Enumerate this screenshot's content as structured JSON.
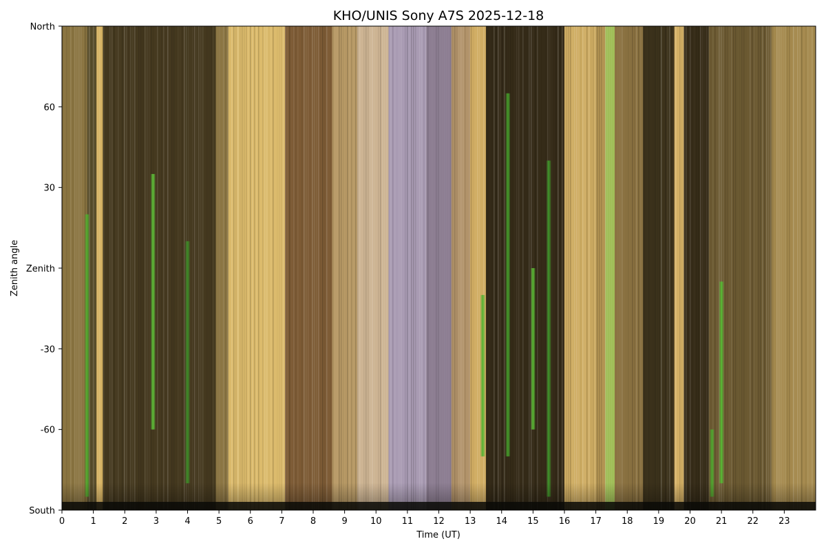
{
  "chart_data": {
    "type": "heatmap",
    "title": "KHO/UNIS Sony A7S 2025-12-18",
    "xlabel": "Time (UT)",
    "ylabel": "Zenith angle",
    "xlim": [
      0,
      24
    ],
    "ylim": [
      -90,
      90
    ],
    "x_ticks": [
      0,
      1,
      2,
      3,
      4,
      5,
      6,
      7,
      8,
      9,
      10,
      11,
      12,
      13,
      14,
      15,
      16,
      17,
      18,
      19,
      20,
      21,
      22,
      23
    ],
    "y_ticks": [
      {
        "value": 90,
        "label": "North"
      },
      {
        "value": 60,
        "label": "60"
      },
      {
        "value": 30,
        "label": "30"
      },
      {
        "value": 0,
        "label": "Zenith"
      },
      {
        "value": -30,
        "label": "-30"
      },
      {
        "value": -60,
        "label": "-60"
      },
      {
        "value": -90,
        "label": "South"
      }
    ],
    "background_bands": [
      {
        "x0": 0.0,
        "x1": 0.8,
        "color": "#8a7440"
      },
      {
        "x0": 0.8,
        "x1": 1.1,
        "color": "#5a4e2c"
      },
      {
        "x0": 1.1,
        "x1": 1.3,
        "color": "#d8b464"
      },
      {
        "x0": 1.3,
        "x1": 4.9,
        "color": "#45391f"
      },
      {
        "x0": 4.9,
        "x1": 5.3,
        "color": "#8c7644"
      },
      {
        "x0": 5.3,
        "x1": 7.1,
        "color": "#dcbb6c"
      },
      {
        "x0": 7.1,
        "x1": 8.6,
        "color": "#7d5b35"
      },
      {
        "x0": 8.6,
        "x1": 9.4,
        "color": "#b89a66"
      },
      {
        "x0": 9.4,
        "x1": 10.4,
        "color": "#cdb493"
      },
      {
        "x0": 10.4,
        "x1": 11.6,
        "color": "#a99bb3"
      },
      {
        "x0": 11.6,
        "x1": 12.4,
        "color": "#8d7e92"
      },
      {
        "x0": 12.4,
        "x1": 13.0,
        "color": "#b19269"
      },
      {
        "x0": 13.0,
        "x1": 13.5,
        "color": "#d1ad63"
      },
      {
        "x0": 13.5,
        "x1": 16.0,
        "color": "#352b18"
      },
      {
        "x0": 16.0,
        "x1": 17.0,
        "color": "#cfad63"
      },
      {
        "x0": 17.0,
        "x1": 17.3,
        "color": "#b49553"
      },
      {
        "x0": 17.3,
        "x1": 17.6,
        "color": "#9fbd55"
      },
      {
        "x0": 17.6,
        "x1": 18.5,
        "color": "#8a7140"
      },
      {
        "x0": 18.5,
        "x1": 19.5,
        "color": "#3d331c"
      },
      {
        "x0": 19.5,
        "x1": 19.8,
        "color": "#d6b266"
      },
      {
        "x0": 19.8,
        "x1": 20.6,
        "color": "#362c18"
      },
      {
        "x0": 20.6,
        "x1": 22.6,
        "color": "#6c5a32"
      },
      {
        "x0": 22.6,
        "x1": 24.0,
        "color": "#a58a4e"
      }
    ],
    "green_streaks": [
      {
        "x": 0.8,
        "y_top": 20,
        "y_bottom": -85,
        "color": "#4fae2e"
      },
      {
        "x": 2.9,
        "y_top": 35,
        "y_bottom": -60,
        "color": "#5fc23a"
      },
      {
        "x": 4.0,
        "y_top": 10,
        "y_bottom": -80,
        "color": "#3c8d26"
      },
      {
        "x": 13.4,
        "y_top": -10,
        "y_bottom": -70,
        "color": "#52b233"
      },
      {
        "x": 14.2,
        "y_top": 65,
        "y_bottom": -70,
        "color": "#46a02c"
      },
      {
        "x": 15.0,
        "y_top": 0,
        "y_bottom": -60,
        "color": "#5cbc36"
      },
      {
        "x": 15.5,
        "y_top": 40,
        "y_bottom": -85,
        "color": "#3e9328"
      },
      {
        "x": 20.7,
        "y_top": -60,
        "y_bottom": -85,
        "color": "#4caa2f"
      },
      {
        "x": 21.0,
        "y_top": -5,
        "y_bottom": -80,
        "color": "#55b833"
      }
    ]
  }
}
